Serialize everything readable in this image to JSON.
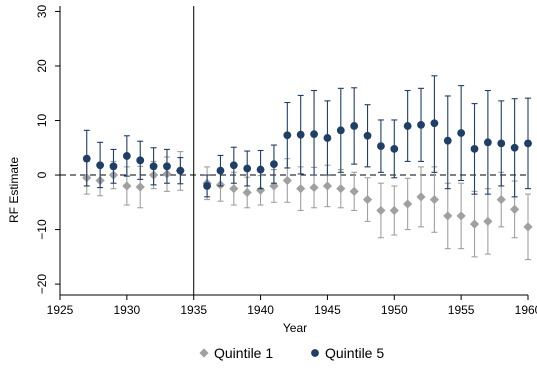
{
  "chart_data": {
    "type": "scatter",
    "xlabel": "Year",
    "ylabel": "RF Estimate",
    "xlim": [
      1925,
      1960
    ],
    "ylim": [
      -22,
      31
    ],
    "x_ticks": [
      1925,
      1930,
      1935,
      1940,
      1945,
      1950,
      1955,
      1960
    ],
    "y_ticks": [
      -20,
      -10,
      0,
      10,
      20,
      30
    ],
    "x_tick_labels": [
      "1925",
      "1930",
      "1935",
      "1940",
      "1945",
      "1950",
      "1955",
      "1960"
    ],
    "y_tick_labels": [
      "−20",
      "−10",
      "0",
      "10",
      "20",
      "30"
    ],
    "reference_lines": {
      "vertical_x": 1935,
      "horizontal_y": 0
    },
    "grid": false,
    "legend_position": "bottom",
    "series": [
      {
        "name": "Quintile 1",
        "marker": "diamond",
        "color": "#a0a0a0",
        "points": [
          {
            "x": 1927,
            "y": -0.5,
            "lo": -3.5,
            "hi": 2.5
          },
          {
            "x": 1928,
            "y": -1.0,
            "lo": -3.8,
            "hi": 1.8
          },
          {
            "x": 1929,
            "y": 0.0,
            "lo": -2.5,
            "hi": 2.5
          },
          {
            "x": 1930,
            "y": -2.0,
            "lo": -5.5,
            "hi": 1.5
          },
          {
            "x": 1931,
            "y": -2.2,
            "lo": -6.0,
            "hi": 1.6
          },
          {
            "x": 1932,
            "y": 0.0,
            "lo": -2.5,
            "hi": 2.5
          },
          {
            "x": 1933,
            "y": 0.2,
            "lo": -3.0,
            "hi": 3.3
          },
          {
            "x": 1934,
            "y": 0.8,
            "lo": -2.8,
            "hi": 4.3
          },
          {
            "x": 1936,
            "y": -1.5,
            "lo": -4.5,
            "hi": 1.5
          },
          {
            "x": 1937,
            "y": -1.8,
            "lo": -4.8,
            "hi": 1.2
          },
          {
            "x": 1938,
            "y": -2.5,
            "lo": -5.5,
            "hi": 0.5
          },
          {
            "x": 1939,
            "y": -3.2,
            "lo": -6.0,
            "hi": -0.4
          },
          {
            "x": 1940,
            "y": -2.8,
            "lo": -5.5,
            "hi": -0.1
          },
          {
            "x": 1941,
            "y": -2.0,
            "lo": -5.0,
            "hi": 1.0
          },
          {
            "x": 1942,
            "y": -1.0,
            "lo": -5.0,
            "hi": 3.0
          },
          {
            "x": 1943,
            "y": -2.5,
            "lo": -6.5,
            "hi": 1.5
          },
          {
            "x": 1944,
            "y": -2.3,
            "lo": -6.0,
            "hi": 1.4
          },
          {
            "x": 1945,
            "y": -2.0,
            "lo": -5.8,
            "hi": 1.8
          },
          {
            "x": 1946,
            "y": -2.5,
            "lo": -6.0,
            "hi": 1.0
          },
          {
            "x": 1947,
            "y": -3.0,
            "lo": -6.5,
            "hi": 0.5
          },
          {
            "x": 1948,
            "y": -4.5,
            "lo": -8.5,
            "hi": -0.5
          },
          {
            "x": 1949,
            "y": -6.5,
            "lo": -11.5,
            "hi": -1.5
          },
          {
            "x": 1950,
            "y": -6.5,
            "lo": -11.0,
            "hi": -2.0
          },
          {
            "x": 1951,
            "y": -5.3,
            "lo": -10.0,
            "hi": -0.6
          },
          {
            "x": 1952,
            "y": -4.0,
            "lo": -9.5,
            "hi": 1.5
          },
          {
            "x": 1953,
            "y": -4.5,
            "lo": -10.5,
            "hi": 1.5
          },
          {
            "x": 1954,
            "y": -7.5,
            "lo": -13.5,
            "hi": -1.5
          },
          {
            "x": 1955,
            "y": -7.5,
            "lo": -13.5,
            "hi": -1.5
          },
          {
            "x": 1956,
            "y": -9.0,
            "lo": -15.0,
            "hi": -3.0
          },
          {
            "x": 1957,
            "y": -8.5,
            "lo": -14.5,
            "hi": -2.5
          },
          {
            "x": 1958,
            "y": -4.5,
            "lo": -9.5,
            "hi": 0.5
          },
          {
            "x": 1959,
            "y": -6.3,
            "lo": -11.5,
            "hi": -1.1
          },
          {
            "x": 1960,
            "y": -9.5,
            "lo": -15.5,
            "hi": -3.5
          }
        ]
      },
      {
        "name": "Quintile 5",
        "marker": "circle",
        "color": "#1f3f66",
        "points": [
          {
            "x": 1927,
            "y": 3.0,
            "lo": -2.0,
            "hi": 8.2
          },
          {
            "x": 1928,
            "y": 1.8,
            "lo": -2.3,
            "hi": 6.0
          },
          {
            "x": 1929,
            "y": 1.6,
            "lo": -1.5,
            "hi": 4.7
          },
          {
            "x": 1930,
            "y": 3.5,
            "lo": -0.2,
            "hi": 7.2
          },
          {
            "x": 1931,
            "y": 2.7,
            "lo": -0.8,
            "hi": 6.2
          },
          {
            "x": 1932,
            "y": 1.6,
            "lo": -1.8,
            "hi": 5.0
          },
          {
            "x": 1933,
            "y": 1.6,
            "lo": -1.5,
            "hi": 4.7
          },
          {
            "x": 1934,
            "y": 0.8,
            "lo": -1.6,
            "hi": 3.2
          },
          {
            "x": 1936,
            "y": -2.0,
            "lo": -4.0,
            "hi": 0.0
          },
          {
            "x": 1937,
            "y": 0.8,
            "lo": -2.0,
            "hi": 3.6
          },
          {
            "x": 1938,
            "y": 1.8,
            "lo": -1.5,
            "hi": 5.1
          },
          {
            "x": 1939,
            "y": 1.2,
            "lo": -2.0,
            "hi": 4.4
          },
          {
            "x": 1940,
            "y": 1.0,
            "lo": -2.5,
            "hi": 4.5
          },
          {
            "x": 1941,
            "y": 2.0,
            "lo": -1.5,
            "hi": 5.5
          },
          {
            "x": 1942,
            "y": 7.3,
            "lo": 1.3,
            "hi": 13.3
          },
          {
            "x": 1943,
            "y": 7.4,
            "lo": 0.2,
            "hi": 14.6
          },
          {
            "x": 1944,
            "y": 7.5,
            "lo": 0.0,
            "hi": 15.5
          },
          {
            "x": 1945,
            "y": 6.8,
            "lo": 0.0,
            "hi": 13.6
          },
          {
            "x": 1946,
            "y": 8.2,
            "lo": 0.5,
            "hi": 15.9
          },
          {
            "x": 1947,
            "y": 9.0,
            "lo": 2.0,
            "hi": 16.0
          },
          {
            "x": 1948,
            "y": 7.2,
            "lo": 1.5,
            "hi": 12.9
          },
          {
            "x": 1949,
            "y": 5.3,
            "lo": 0.5,
            "hi": 10.1
          },
          {
            "x": 1950,
            "y": 4.8,
            "lo": -0.5,
            "hi": 10.1
          },
          {
            "x": 1951,
            "y": 9.0,
            "lo": 2.5,
            "hi": 15.5
          },
          {
            "x": 1952,
            "y": 9.2,
            "lo": 2.5,
            "hi": 15.9
          },
          {
            "x": 1953,
            "y": 9.5,
            "lo": 0.5,
            "hi": 18.2
          },
          {
            "x": 1954,
            "y": 6.3,
            "lo": -2.5,
            "hi": 14.5
          },
          {
            "x": 1955,
            "y": 7.7,
            "lo": -1.0,
            "hi": 16.4
          },
          {
            "x": 1956,
            "y": 4.8,
            "lo": -3.5,
            "hi": 13.1
          },
          {
            "x": 1957,
            "y": 6.0,
            "lo": -3.5,
            "hi": 15.5
          },
          {
            "x": 1958,
            "y": 5.8,
            "lo": -2.0,
            "hi": 13.6
          },
          {
            "x": 1959,
            "y": 5.0,
            "lo": -4.0,
            "hi": 14.0
          },
          {
            "x": 1960,
            "y": 5.8,
            "lo": -2.5,
            "hi": 14.1
          }
        ]
      }
    ]
  }
}
